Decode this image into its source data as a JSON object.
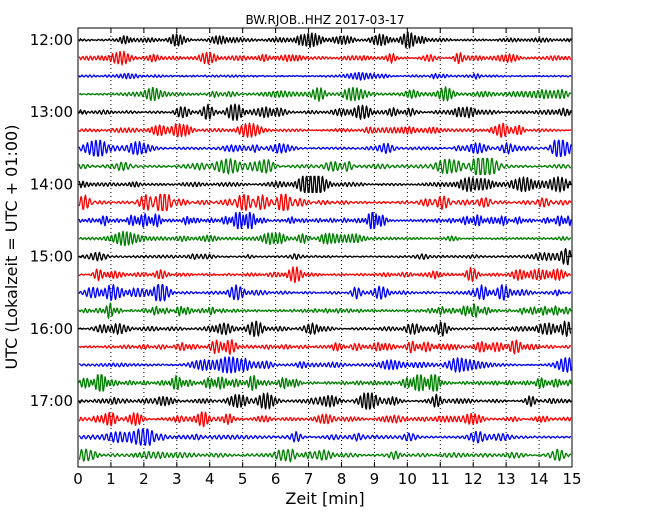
{
  "chart_data": {
    "type": "line",
    "title": "BW.RJOB..HHZ 2017-03-17",
    "xlabel": "Zeit  [min]",
    "ylabel": "UTC (Lokalzeit = UTC + 01:00)",
    "xlim": [
      0,
      15
    ],
    "x_ticks": [
      0,
      1,
      2,
      3,
      4,
      5,
      6,
      7,
      8,
      9,
      10,
      11,
      12,
      13,
      14,
      15
    ],
    "y_tick_labels": [
      "12:00",
      "13:00",
      "14:00",
      "15:00",
      "16:00",
      "17:00"
    ],
    "y_tick_rows": [
      0,
      4,
      8,
      12,
      16,
      20
    ],
    "trace_count": 24,
    "trace_interval_min": 15,
    "trace_colors": [
      "#000000",
      "#ff0000",
      "#0000ff",
      "#008000"
    ],
    "grid": "vertical dotted at each minute",
    "legend": "none"
  }
}
